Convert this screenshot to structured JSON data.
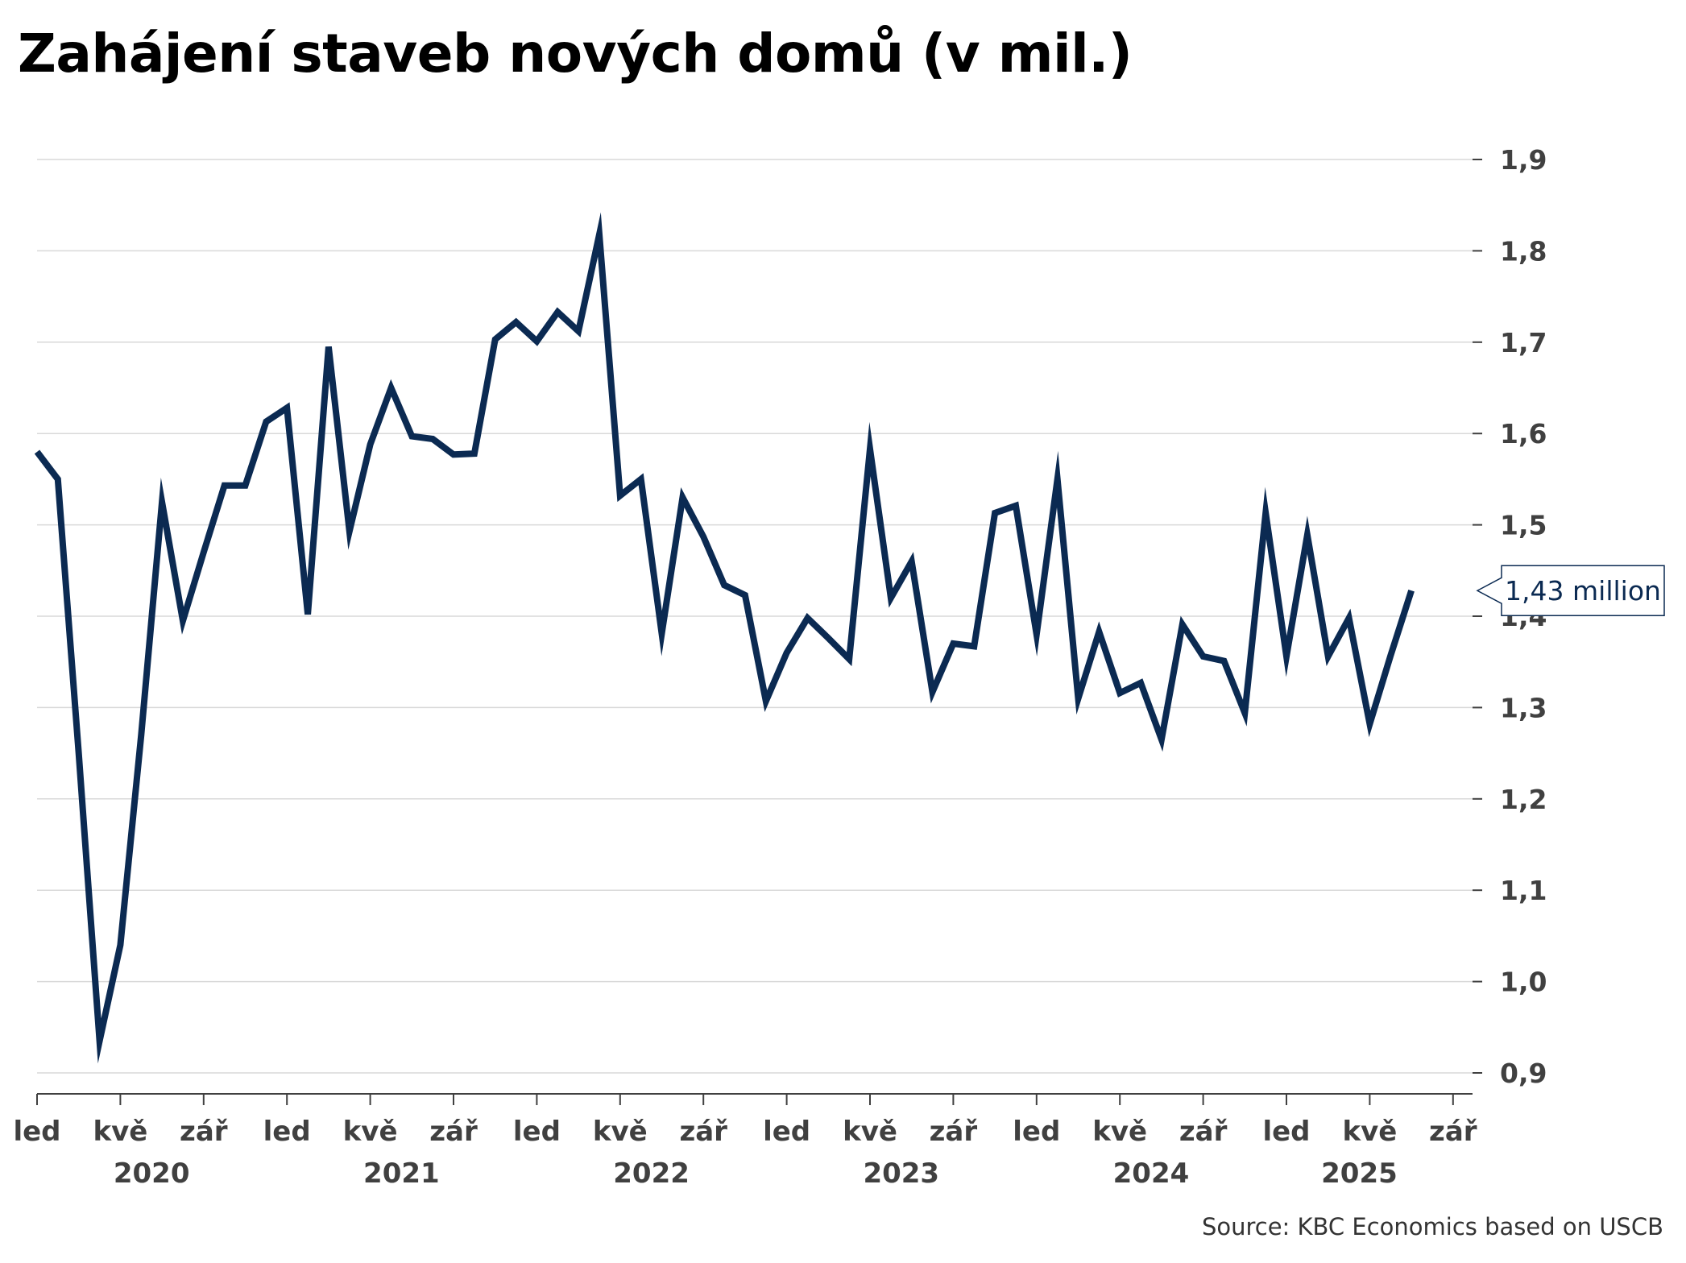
{
  "chart_data": {
    "type": "line",
    "title": "Zahájení staveb nových domů (v mil.)",
    "source": "Source: KBC Economics based on USCB",
    "ylim": [
      0.9,
      1.9
    ],
    "y_ticks": [
      "0,9",
      "1,0",
      "1,1",
      "1,2",
      "1,3",
      "1,4",
      "1,5",
      "1,6",
      "1,7",
      "1,8",
      "1,9"
    ],
    "y_tick_values": [
      0.9,
      1.0,
      1.1,
      1.2,
      1.3,
      1.4,
      1.5,
      1.6,
      1.7,
      1.8,
      1.9
    ],
    "x_start": "2020-01",
    "x_end": "2025-09",
    "x_month_labels": [
      {
        "month": "2020-01",
        "label": "led"
      },
      {
        "month": "2020-05",
        "label": "kvě"
      },
      {
        "month": "2020-09",
        "label": "zář"
      },
      {
        "month": "2021-01",
        "label": "led"
      },
      {
        "month": "2021-05",
        "label": "kvě"
      },
      {
        "month": "2021-09",
        "label": "zář"
      },
      {
        "month": "2022-01",
        "label": "led"
      },
      {
        "month": "2022-05",
        "label": "kvě"
      },
      {
        "month": "2022-09",
        "label": "zář"
      },
      {
        "month": "2023-01",
        "label": "led"
      },
      {
        "month": "2023-05",
        "label": "kvě"
      },
      {
        "month": "2023-09",
        "label": "zář"
      },
      {
        "month": "2024-01",
        "label": "led"
      },
      {
        "month": "2024-05",
        "label": "kvě"
      },
      {
        "month": "2024-09",
        "label": "zář"
      },
      {
        "month": "2025-01",
        "label": "led"
      },
      {
        "month": "2025-05",
        "label": "kvě"
      },
      {
        "month": "2025-09",
        "label": "zář"
      }
    ],
    "x_year_labels": [
      {
        "center_month": "2020-07",
        "label": "2020"
      },
      {
        "center_month": "2021-07",
        "label": "2021"
      },
      {
        "center_month": "2022-07",
        "label": "2022"
      },
      {
        "center_month": "2023-07",
        "label": "2023"
      },
      {
        "center_month": "2024-07",
        "label": "2024"
      },
      {
        "center_month": "2025-05",
        "label": "2025"
      }
    ],
    "series": [
      {
        "color": "#0b2a52",
        "x": [
          "2020-01",
          "2020-02",
          "2020-03",
          "2020-04",
          "2020-05",
          "2020-06",
          "2020-07",
          "2020-08",
          "2020-09",
          "2020-10",
          "2020-11",
          "2020-12",
          "2021-01",
          "2021-02",
          "2021-03",
          "2021-04",
          "2021-05",
          "2021-06",
          "2021-07",
          "2021-08",
          "2021-09",
          "2021-10",
          "2021-11",
          "2021-12",
          "2022-01",
          "2022-02",
          "2022-03",
          "2022-04",
          "2022-05",
          "2022-06",
          "2022-07",
          "2022-08",
          "2022-09",
          "2022-10",
          "2022-11",
          "2022-12",
          "2023-01",
          "2023-02",
          "2023-03",
          "2023-04",
          "2023-05",
          "2023-06",
          "2023-07",
          "2023-08",
          "2023-09",
          "2023-10",
          "2023-11",
          "2023-12",
          "2024-01",
          "2024-02",
          "2024-03",
          "2024-04",
          "2024-05",
          "2024-06",
          "2024-07",
          "2024-08",
          "2024-09",
          "2024-10",
          "2024-11",
          "2024-12",
          "2025-01",
          "2025-02",
          "2025-03",
          "2025-04",
          "2025-05",
          "2025-06",
          "2025-07"
        ],
        "values": [
          1.58,
          1.55,
          1.25,
          0.935,
          1.04,
          1.27,
          1.525,
          1.395,
          1.47,
          1.543,
          1.543,
          1.613,
          1.628,
          1.402,
          1.695,
          1.493,
          1.588,
          1.65,
          1.597,
          1.594,
          1.577,
          1.578,
          1.703,
          1.722,
          1.701,
          1.733,
          1.712,
          1.818,
          1.532,
          1.55,
          1.381,
          1.53,
          1.487,
          1.434,
          1.423,
          1.307,
          1.36,
          1.398,
          1.376,
          1.353,
          1.583,
          1.42,
          1.46,
          1.317,
          1.37,
          1.367,
          1.513,
          1.521,
          1.38,
          1.55,
          1.31,
          1.383,
          1.316,
          1.327,
          1.265,
          1.391,
          1.356,
          1.351,
          1.294,
          1.513,
          1.356,
          1.489,
          1.356,
          1.398,
          1.282,
          1.357,
          1.428
        ]
      }
    ],
    "annotation": {
      "month": "2025-07",
      "value": 1.428,
      "label": "1,43 million"
    },
    "grid": true,
    "y_axis_position": "right"
  }
}
